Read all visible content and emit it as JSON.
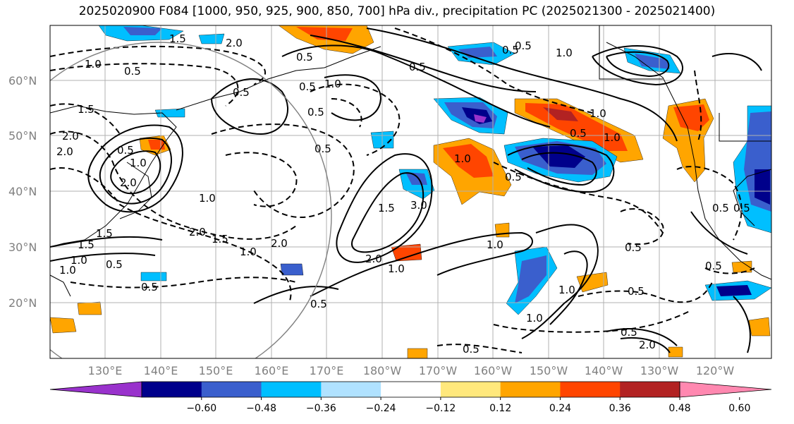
{
  "title": "2025020900 F084 [1000, 950, 925, 900, 850, 700] hPa div., precipitation PC (2025021300 - 2025021400)",
  "map": {
    "lat_labels": [
      "60°N",
      "50°N",
      "40°N",
      "30°N",
      "20°N"
    ],
    "lon_labels": [
      "130°E",
      "140°E",
      "150°E",
      "160°E",
      "170°E",
      "180°W",
      "170°W",
      "160°W",
      "150°W",
      "140°W",
      "130°W",
      "120°W"
    ]
  },
  "colorbar": {
    "ticks": [
      "−0.60",
      "−0.48",
      "−0.36",
      "−0.24",
      "−0.12",
      "0.12",
      "0.24",
      "0.36",
      "0.48",
      "0.60"
    ],
    "colors": [
      "#9932cc",
      "#00008b",
      "#3a5fcd",
      "#00bfff",
      "#b0e2ff",
      "#ffffff",
      "#ffe87c",
      "#ffa500",
      "#ff4500",
      "#b22222",
      "#ff88b0"
    ]
  },
  "contour_labels": [
    "1.5",
    "2.0",
    "1.0",
    "0.5",
    "0.5",
    "1.5",
    "2.0",
    "2.0",
    "0.5",
    "1.0",
    "0.5",
    "2.0",
    "0.5",
    "1.0",
    "0.5",
    "1.5",
    "1.0",
    "2.0",
    "0.5",
    "3.0",
    "1.0",
    "2.0",
    "1.0",
    "0.5",
    "1.0",
    "1.0",
    "0.5",
    "1.0",
    "0.5",
    "1.0",
    "0.5",
    "1.0",
    "0.5",
    "0.5",
    "0.5",
    "1.0",
    "0.5",
    "2.0",
    "0.5",
    "0.5",
    "0.5",
    "0.5",
    "1.5",
    "1.0",
    "0.5",
    "2.0",
    "1.5",
    "0.5",
    "0.5",
    "1.0",
    "1.5",
    "1.0"
  ]
}
